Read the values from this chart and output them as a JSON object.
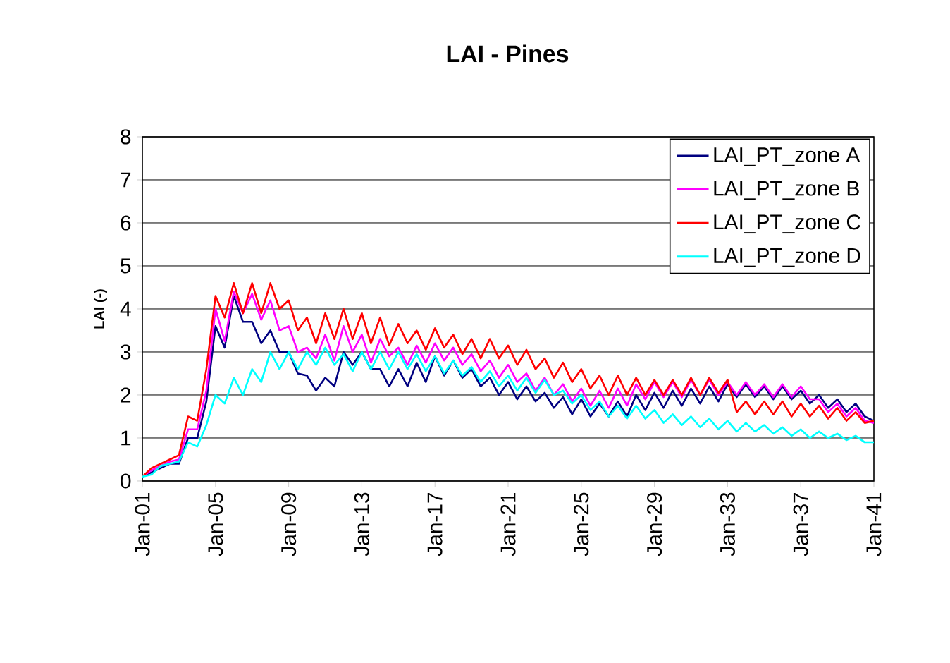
{
  "chart_data": {
    "type": "line",
    "title": "LAI - Pines",
    "ylabel": "LAI (-)",
    "x": [
      "2001-01",
      "2001-07",
      "2002-01",
      "2002-07",
      "2003-01",
      "2003-07",
      "2004-01",
      "2004-07",
      "2005-01",
      "2005-07",
      "2006-01",
      "2006-07",
      "2007-01",
      "2007-07",
      "2008-01",
      "2008-07",
      "2009-01",
      "2009-07",
      "2010-01",
      "2010-07",
      "2011-01",
      "2011-07",
      "2012-01",
      "2012-07",
      "2013-01",
      "2013-07",
      "2014-01",
      "2014-07",
      "2015-01",
      "2015-07",
      "2016-01",
      "2016-07",
      "2017-01",
      "2017-07",
      "2018-01",
      "2018-07",
      "2019-01",
      "2019-07",
      "2020-01",
      "2020-07",
      "2021-01",
      "2021-07",
      "2022-01",
      "2022-07",
      "2023-01",
      "2023-07",
      "2024-01",
      "2024-07",
      "2025-01",
      "2025-07",
      "2026-01",
      "2026-07",
      "2027-01",
      "2027-07",
      "2028-01",
      "2028-07",
      "2029-01",
      "2029-07",
      "2030-01",
      "2030-07",
      "2031-01",
      "2031-07",
      "2032-01",
      "2032-07",
      "2033-01",
      "2033-07",
      "2034-01",
      "2034-07",
      "2035-01",
      "2035-07",
      "2036-01",
      "2036-07",
      "2037-01",
      "2037-07",
      "2038-01",
      "2038-07",
      "2039-01",
      "2039-07",
      "2040-01",
      "2040-07",
      "2041-01"
    ],
    "series": [
      {
        "name": "LAI_PT_zone A",
        "color": "#000080",
        "values": [
          0.1,
          0.2,
          0.3,
          0.4,
          0.4,
          1.0,
          1.0,
          1.85,
          3.6,
          3.1,
          4.3,
          3.7,
          3.7,
          3.2,
          3.5,
          3.0,
          3.0,
          2.5,
          2.45,
          2.1,
          2.4,
          2.2,
          3.0,
          2.7,
          3.0,
          2.6,
          2.6,
          2.2,
          2.6,
          2.2,
          2.75,
          2.3,
          2.9,
          2.45,
          2.8,
          2.4,
          2.6,
          2.2,
          2.4,
          2.0,
          2.3,
          1.9,
          2.2,
          1.85,
          2.05,
          1.7,
          1.95,
          1.55,
          1.9,
          1.5,
          1.8,
          1.5,
          1.85,
          1.5,
          2.0,
          1.65,
          2.05,
          1.7,
          2.1,
          1.75,
          2.15,
          1.8,
          2.2,
          1.85,
          2.25,
          1.95,
          2.25,
          1.95,
          2.2,
          1.9,
          2.2,
          1.9,
          2.1,
          1.8,
          2.0,
          1.7,
          1.9,
          1.6,
          1.8,
          1.5,
          1.4
        ]
      },
      {
        "name": "LAI_PT_zone B",
        "color": "#ff00ff",
        "values": [
          0.1,
          0.25,
          0.35,
          0.45,
          0.5,
          1.2,
          1.2,
          2.1,
          4.0,
          3.25,
          4.4,
          3.9,
          4.35,
          3.75,
          4.2,
          3.5,
          3.6,
          3.0,
          3.1,
          2.85,
          3.4,
          2.8,
          3.6,
          3.0,
          3.4,
          2.75,
          3.3,
          2.9,
          3.1,
          2.7,
          3.15,
          2.75,
          3.2,
          2.8,
          3.1,
          2.7,
          2.95,
          2.55,
          2.8,
          2.4,
          2.7,
          2.3,
          2.5,
          2.1,
          2.4,
          2.0,
          2.25,
          1.85,
          2.15,
          1.75,
          2.1,
          1.7,
          2.15,
          1.75,
          2.25,
          1.9,
          2.3,
          1.95,
          2.3,
          1.95,
          2.35,
          2.0,
          2.35,
          2.0,
          2.3,
          2.0,
          2.3,
          2.0,
          2.25,
          1.95,
          2.25,
          1.95,
          2.2,
          1.9,
          1.9,
          1.6,
          1.8,
          1.5,
          1.7,
          1.4,
          1.35
        ]
      },
      {
        "name": "LAI_PT_zone C",
        "color": "#ff0000",
        "values": [
          0.1,
          0.3,
          0.4,
          0.5,
          0.6,
          1.5,
          1.4,
          2.6,
          4.3,
          3.8,
          4.6,
          3.9,
          4.6,
          3.9,
          4.6,
          4.0,
          4.2,
          3.5,
          3.8,
          3.2,
          3.9,
          3.3,
          4.0,
          3.3,
          3.9,
          3.2,
          3.8,
          3.15,
          3.65,
          3.2,
          3.5,
          3.05,
          3.55,
          3.1,
          3.4,
          2.95,
          3.3,
          2.85,
          3.3,
          2.85,
          3.15,
          2.7,
          3.05,
          2.6,
          2.85,
          2.4,
          2.75,
          2.3,
          2.6,
          2.15,
          2.45,
          2.0,
          2.45,
          2.0,
          2.4,
          2.0,
          2.35,
          2.0,
          2.35,
          2.0,
          2.4,
          2.0,
          2.4,
          2.05,
          2.35,
          1.6,
          1.85,
          1.55,
          1.85,
          1.55,
          1.85,
          1.5,
          1.8,
          1.5,
          1.75,
          1.45,
          1.7,
          1.4,
          1.6,
          1.35,
          1.4
        ]
      },
      {
        "name": "LAI_PT_zone D",
        "color": "#00ffff",
        "values": [
          0.1,
          0.15,
          0.35,
          0.4,
          0.45,
          0.9,
          0.8,
          1.3,
          2.0,
          1.8,
          2.4,
          2.0,
          2.6,
          2.3,
          3.0,
          2.6,
          3.0,
          2.6,
          3.0,
          2.7,
          3.1,
          2.7,
          2.95,
          2.55,
          3.0,
          2.6,
          3.0,
          2.6,
          3.0,
          2.6,
          2.95,
          2.55,
          2.9,
          2.5,
          2.8,
          2.45,
          2.65,
          2.3,
          2.55,
          2.2,
          2.45,
          2.1,
          2.4,
          2.05,
          2.35,
          2.0,
          2.1,
          1.8,
          2.0,
          1.65,
          1.85,
          1.5,
          1.75,
          1.45,
          1.75,
          1.45,
          1.65,
          1.35,
          1.55,
          1.3,
          1.5,
          1.25,
          1.45,
          1.2,
          1.4,
          1.15,
          1.35,
          1.15,
          1.3,
          1.1,
          1.25,
          1.05,
          1.2,
          1.0,
          1.15,
          1.0,
          1.1,
          0.95,
          1.05,
          0.9,
          0.9
        ]
      }
    ],
    "xlim": [
      "2001-01",
      "2041-01"
    ],
    "xticks": [
      {
        "value": "2001-01",
        "label": "Jan-01"
      },
      {
        "value": "2005-01",
        "label": "Jan-05"
      },
      {
        "value": "2009-01",
        "label": "Jan-09"
      },
      {
        "value": "2013-01",
        "label": "Jan-13"
      },
      {
        "value": "2017-01",
        "label": "Jan-17"
      },
      {
        "value": "2021-01",
        "label": "Jan-21"
      },
      {
        "value": "2025-01",
        "label": "Jan-25"
      },
      {
        "value": "2029-01",
        "label": "Jan-29"
      },
      {
        "value": "2033-01",
        "label": "Jan-33"
      },
      {
        "value": "2037-01",
        "label": "Jan-37"
      },
      {
        "value": "2041-01",
        "label": "Jan-41"
      }
    ],
    "ylim": [
      0,
      8
    ],
    "yticks": [
      0,
      1,
      2,
      3,
      4,
      5,
      6,
      7,
      8
    ],
    "grid": "y",
    "legend": "top right",
    "marker": "none",
    "line_style": "solid"
  }
}
